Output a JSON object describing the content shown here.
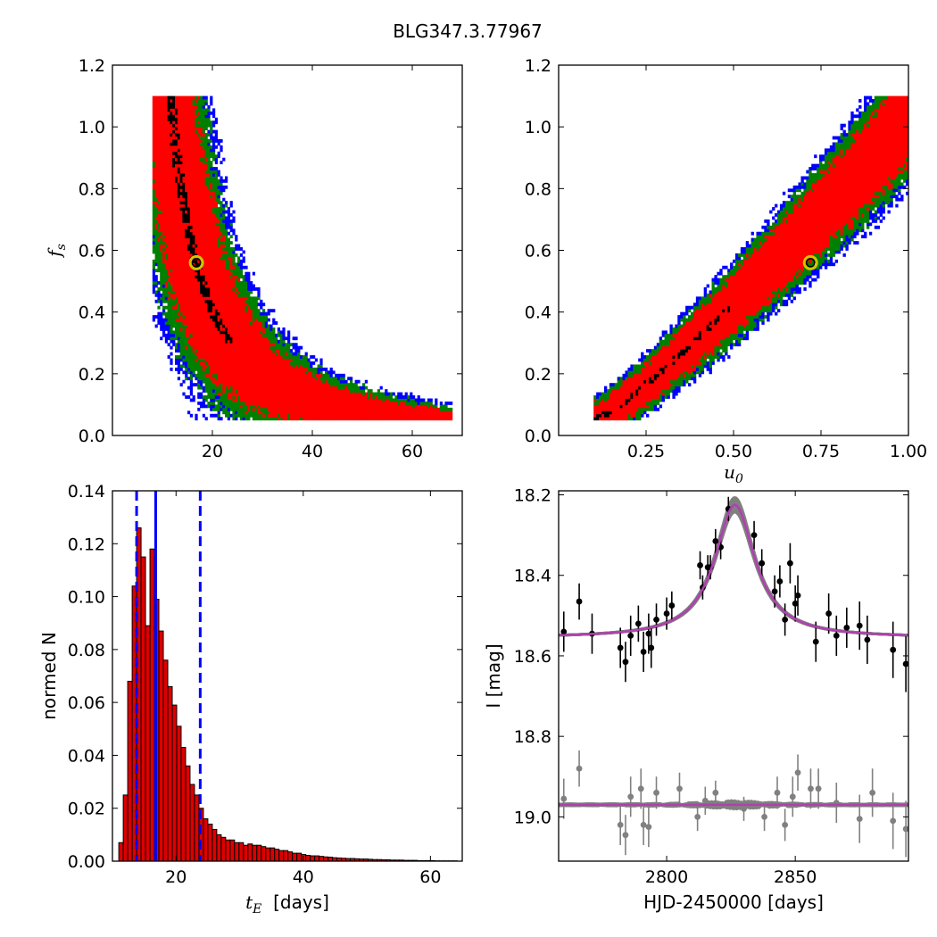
{
  "figure": {
    "title": "BLG347.3.77967"
  },
  "colors": {
    "sigma1": "#ff0000",
    "sigma2": "#008000",
    "sigma3": "#0000ff",
    "best_density": "#000000",
    "best_fit_marker": "#d4c400",
    "hist_bar": "#dd0000",
    "hist_edge": "#000000",
    "median_line": "#0000ff",
    "model_line": "#b040b0",
    "model_band": "#808080",
    "data_primary": "#000000",
    "data_residual": "#808080"
  },
  "chart_data": [
    {
      "type": "heatmap",
      "panel": "top-left",
      "xlabel": "",
      "ylabel": "f_s",
      "xlim": [
        0,
        70
      ],
      "ylim": [
        0.0,
        1.2
      ],
      "xticks": [
        20,
        40,
        60
      ],
      "xtick_labels": [
        "20",
        "40",
        "60"
      ],
      "yticks": [
        0.0,
        0.2,
        0.4,
        0.6,
        0.8,
        1.0,
        1.2
      ],
      "ytick_labels": [
        "0.0",
        "0.2",
        "0.4",
        "0.6",
        "0.8",
        "1.0",
        "1.2"
      ],
      "best_fit": {
        "x": 16.8,
        "y": 0.56
      },
      "confidence_regions": [
        "best",
        "1-sigma",
        "2-sigma",
        "3-sigma"
      ]
    },
    {
      "type": "heatmap",
      "panel": "top-right",
      "xlabel": "u_0",
      "ylabel": "",
      "xlim": [
        0.0,
        1.0
      ],
      "ylim": [
        0.0,
        1.2
      ],
      "xticks": [
        0.25,
        0.5,
        0.75,
        1.0
      ],
      "xtick_labels": [
        "0.25",
        "0.50",
        "0.75",
        "1.00"
      ],
      "yticks": [
        0.0,
        0.2,
        0.4,
        0.6,
        0.8,
        1.0,
        1.2
      ],
      "ytick_labels": [
        "0.0",
        "0.2",
        "0.4",
        "0.6",
        "0.8",
        "1.0",
        "1.2"
      ],
      "best_fit": {
        "x": 0.72,
        "y": 0.56
      },
      "confidence_regions": [
        "best",
        "1-sigma",
        "2-sigma",
        "3-sigma"
      ]
    },
    {
      "type": "bar",
      "panel": "bottom-left",
      "xlabel": "t_E  [days]",
      "ylabel": "normed N",
      "xlim": [
        10,
        65
      ],
      "ylim": [
        0.0,
        0.14
      ],
      "xticks": [
        20,
        40,
        60
      ],
      "xtick_labels": [
        "20",
        "40",
        "60"
      ],
      "yticks": [
        0.0,
        0.02,
        0.04,
        0.06,
        0.08,
        0.1,
        0.12,
        0.14
      ],
      "ytick_labels": [
        "0.00",
        "0.02",
        "0.04",
        "0.06",
        "0.08",
        "0.10",
        "0.12",
        "0.14"
      ],
      "bin_width": 0.7,
      "bin_start": 11.0,
      "values": [
        0.007,
        0.025,
        0.068,
        0.104,
        0.126,
        0.115,
        0.089,
        0.118,
        0.099,
        0.087,
        0.076,
        0.066,
        0.059,
        0.051,
        0.043,
        0.036,
        0.029,
        0.025,
        0.02,
        0.016,
        0.014,
        0.012,
        0.01,
        0.009,
        0.008,
        0.008,
        0.007,
        0.007,
        0.006,
        0.0065,
        0.006,
        0.006,
        0.0055,
        0.005,
        0.005,
        0.0045,
        0.004,
        0.004,
        0.0035,
        0.003,
        0.003,
        0.0025,
        0.0022,
        0.002,
        0.002,
        0.0018,
        0.0016,
        0.0015,
        0.0013,
        0.0012,
        0.0011,
        0.001,
        0.001,
        0.0009,
        0.0008,
        0.0008,
        0.0007,
        0.0006,
        0.0006,
        0.0005,
        0.0005,
        0.0004,
        0.0004,
        0.0004,
        0.0003,
        0.0003,
        0.0003,
        0.0002,
        0.0002,
        0.0002,
        0.0002,
        0.0001,
        0.0001,
        0.0001,
        0.0001,
        0.0001
      ],
      "median": 16.8,
      "interval": [
        13.8,
        23.8
      ]
    },
    {
      "type": "scatter",
      "panel": "bottom-right",
      "xlabel": "HJD-2450000 [days]",
      "ylabel": "I [mag]",
      "xlim": [
        2758,
        2894
      ],
      "ylim": [
        19.11,
        18.19
      ],
      "y_inverted": true,
      "xticks": [
        2800,
        2850
      ],
      "xtick_labels": [
        "2800",
        "2850"
      ],
      "yticks": [
        18.2,
        18.4,
        18.6,
        18.8,
        19.0
      ],
      "ytick_labels": [
        "18.2",
        "18.4",
        "18.6",
        "18.8",
        "19.0"
      ],
      "model": {
        "t0": 2826.5,
        "baseline": 18.555,
        "peak": 18.225,
        "width": 9.5
      },
      "residual_baseline": 18.97,
      "series": [
        {
          "role": "data",
          "x": [
            2760,
            2766,
            2771,
            2782,
            2784,
            2786,
            2789,
            2791,
            2793,
            2794,
            2796,
            2800,
            2802,
            2813,
            2814,
            2816,
            2817,
            2819,
            2821,
            2824,
            2834,
            2837,
            2842,
            2844,
            2846,
            2848,
            2850,
            2851,
            2858,
            2863,
            2866,
            2870,
            2875,
            2878,
            2888,
            2893
          ],
          "y": [
            18.54,
            18.465,
            18.545,
            18.58,
            18.615,
            18.55,
            18.52,
            18.59,
            18.545,
            18.58,
            18.51,
            18.495,
            18.475,
            18.375,
            18.43,
            18.38,
            18.38,
            18.315,
            18.33,
            18.235,
            18.3,
            18.37,
            18.44,
            18.415,
            18.51,
            18.37,
            18.47,
            18.45,
            18.565,
            18.495,
            18.55,
            18.53,
            18.525,
            18.56,
            18.585,
            18.62
          ],
          "yerr": [
            0.05,
            0.045,
            0.05,
            0.05,
            0.05,
            0.05,
            0.045,
            0.05,
            0.05,
            0.05,
            0.04,
            0.04,
            0.035,
            0.035,
            0.03,
            0.03,
            0.03,
            0.03,
            0.03,
            0.03,
            0.035,
            0.035,
            0.04,
            0.04,
            0.04,
            0.05,
            0.045,
            0.05,
            0.05,
            0.05,
            0.05,
            0.05,
            0.06,
            0.06,
            0.07,
            0.07
          ]
        },
        {
          "role": "residual",
          "x": [
            2760,
            2766,
            2782,
            2784,
            2786,
            2790,
            2791,
            2793,
            2796,
            2805,
            2812,
            2815,
            2819,
            2830,
            2838,
            2843,
            2846,
            2849,
            2851,
            2856,
            2859,
            2866,
            2875,
            2880,
            2888,
            2893
          ],
          "y": [
            18.955,
            18.88,
            19.02,
            19.045,
            18.95,
            18.93,
            19.02,
            19.025,
            18.94,
            18.93,
            19.0,
            18.96,
            18.94,
            18.98,
            19.0,
            18.94,
            19.02,
            18.95,
            18.89,
            18.93,
            18.93,
            18.965,
            19.005,
            18.94,
            19.01,
            19.03
          ],
          "yerr": [
            0.05,
            0.045,
            0.05,
            0.05,
            0.05,
            0.05,
            0.05,
            0.05,
            0.04,
            0.04,
            0.035,
            0.035,
            0.03,
            0.03,
            0.035,
            0.04,
            0.04,
            0.05,
            0.045,
            0.05,
            0.05,
            0.05,
            0.06,
            0.06,
            0.07,
            0.07
          ]
        }
      ]
    }
  ]
}
